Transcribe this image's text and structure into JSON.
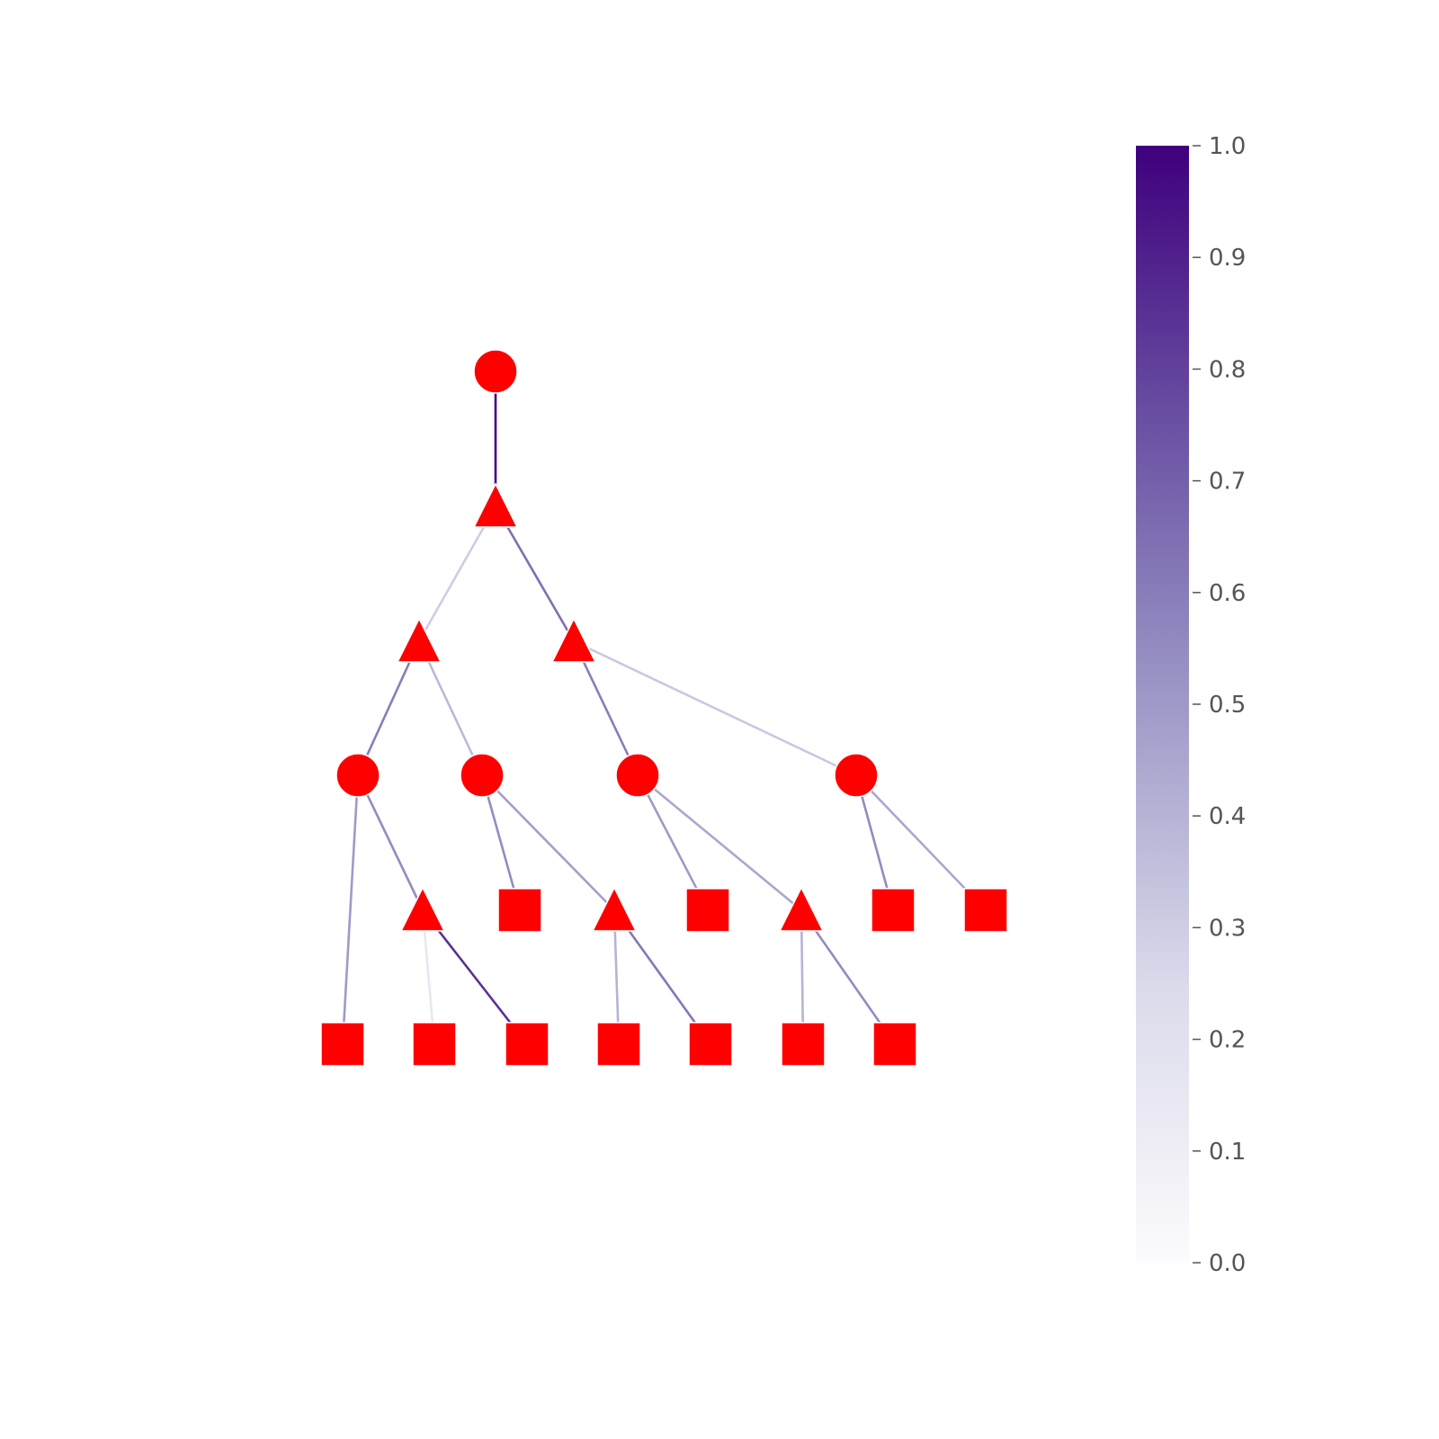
{
  "colors": {
    "node_fill": "#ff0000",
    "node_stroke": "#ffffff",
    "colormap_low": "#fcfbfd",
    "colormap_mid": "#9e9ac8",
    "colormap_high": "#3f007d",
    "tick_text": "#555555"
  },
  "colorbar": {
    "min": 0.0,
    "max": 1.0,
    "ticks": [
      "0.0",
      "0.1",
      "0.2",
      "0.3",
      "0.4",
      "0.5",
      "0.6",
      "0.7",
      "0.8",
      "0.9",
      "1.0"
    ]
  },
  "tree": {
    "nodes": [
      {
        "id": "n0",
        "shape": "circle"
      },
      {
        "id": "n1",
        "shape": "triangle"
      },
      {
        "id": "n2",
        "shape": "triangle"
      },
      {
        "id": "n3",
        "shape": "triangle"
      },
      {
        "id": "n4",
        "shape": "circle"
      },
      {
        "id": "n5",
        "shape": "circle"
      },
      {
        "id": "n6",
        "shape": "circle"
      },
      {
        "id": "n7",
        "shape": "circle"
      },
      {
        "id": "n8",
        "shape": "triangle"
      },
      {
        "id": "n9",
        "shape": "square"
      },
      {
        "id": "n10",
        "shape": "triangle"
      },
      {
        "id": "n11",
        "shape": "square"
      },
      {
        "id": "n12",
        "shape": "triangle"
      },
      {
        "id": "n13",
        "shape": "square"
      },
      {
        "id": "n14",
        "shape": "square"
      },
      {
        "id": "n15",
        "shape": "square"
      },
      {
        "id": "n16",
        "shape": "square"
      },
      {
        "id": "n17",
        "shape": "square"
      },
      {
        "id": "n18",
        "shape": "square"
      },
      {
        "id": "n19",
        "shape": "square"
      },
      {
        "id": "n20",
        "shape": "square"
      },
      {
        "id": "n21",
        "shape": "square"
      }
    ],
    "edges": [
      {
        "from": "n0",
        "to": "n1",
        "value": 1.0
      },
      {
        "from": "n1",
        "to": "n2",
        "value": 0.3
      },
      {
        "from": "n1",
        "to": "n3",
        "value": 0.65
      },
      {
        "from": "n2",
        "to": "n4",
        "value": 0.6
      },
      {
        "from": "n2",
        "to": "n5",
        "value": 0.38
      },
      {
        "from": "n3",
        "to": "n6",
        "value": 0.6
      },
      {
        "from": "n3",
        "to": "n7",
        "value": 0.32
      },
      {
        "from": "n4",
        "to": "n15",
        "value": 0.5
      },
      {
        "from": "n4",
        "to": "n8",
        "value": 0.55
      },
      {
        "from": "n8",
        "to": "n16",
        "value": 0.15
      },
      {
        "from": "n8",
        "to": "n17",
        "value": 0.85
      },
      {
        "from": "n5",
        "to": "n9",
        "value": 0.55
      },
      {
        "from": "n5",
        "to": "n10",
        "value": 0.48
      },
      {
        "from": "n10",
        "to": "n18",
        "value": 0.4
      },
      {
        "from": "n10",
        "to": "n19",
        "value": 0.62
      },
      {
        "from": "n6",
        "to": "n11",
        "value": 0.5
      },
      {
        "from": "n6",
        "to": "n12",
        "value": 0.45
      },
      {
        "from": "n12",
        "to": "n20",
        "value": 0.4
      },
      {
        "from": "n12",
        "to": "n21",
        "value": 0.55
      },
      {
        "from": "n7",
        "to": "n13",
        "value": 0.55
      },
      {
        "from": "n7",
        "to": "n14",
        "value": 0.45
      }
    ]
  }
}
